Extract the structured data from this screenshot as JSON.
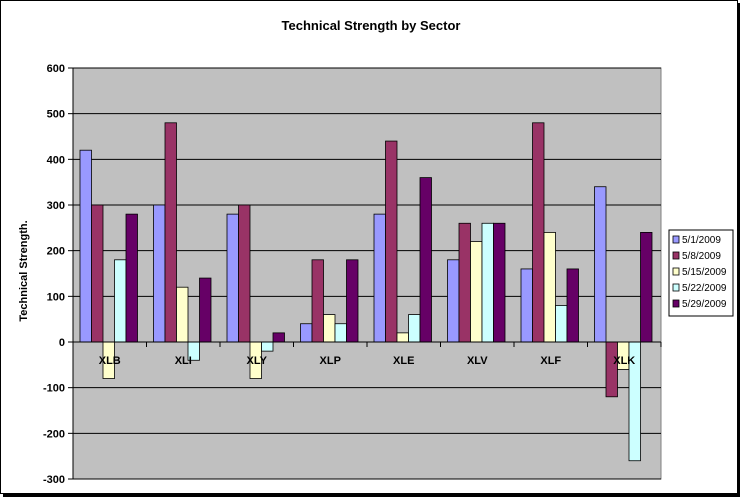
{
  "chart_data": {
    "type": "bar",
    "title": "Technical Strength by Sector",
    "xlabel": "",
    "ylabel": "Technical Strength.",
    "ylim": [
      -300,
      600
    ],
    "yticks": [
      "600",
      "500",
      "400",
      "300",
      "200",
      "100",
      "0",
      "-100",
      "-200",
      "-300"
    ],
    "ytick_values": [
      600,
      500,
      400,
      300,
      200,
      100,
      0,
      -100,
      -200,
      -300
    ],
    "grid": true,
    "legend_position": "right",
    "categories": [
      "XLB",
      "XLI",
      "XLY",
      "XLP",
      "XLE",
      "XLV",
      "XLF",
      "XLK"
    ],
    "series": [
      {
        "name": "5/1/2009",
        "color": "#9999ff",
        "values": [
          420,
          300,
          280,
          40,
          280,
          180,
          160,
          340
        ]
      },
      {
        "name": "5/8/2009",
        "color": "#993366",
        "values": [
          300,
          480,
          300,
          180,
          440,
          260,
          480,
          -120
        ]
      },
      {
        "name": "5/15/2009",
        "color": "#ffffcc",
        "values": [
          -80,
          120,
          -80,
          60,
          20,
          220,
          240,
          -60
        ]
      },
      {
        "name": "5/22/2009",
        "color": "#ccffff",
        "values": [
          180,
          -40,
          -20,
          40,
          60,
          260,
          80,
          -260
        ]
      },
      {
        "name": "5/29/2009",
        "color": "#660066",
        "values": [
          280,
          140,
          20,
          180,
          360,
          260,
          160,
          240
        ]
      }
    ],
    "plot_background": "#c0c0c0"
  }
}
